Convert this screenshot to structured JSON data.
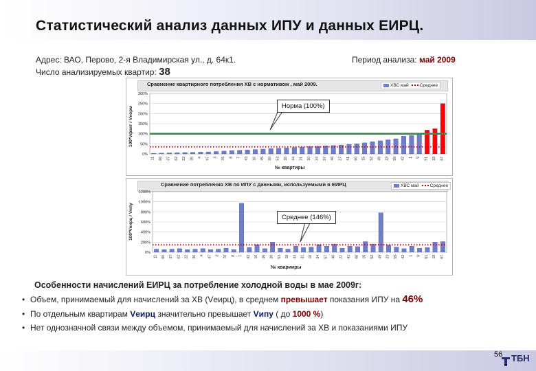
{
  "title": "Статистический анализ данных ИПУ и данных ЕИРЦ.",
  "info": {
    "address": "Адрес: ВАО, Перово, 2-я Владимирская ул., д. 64к1.",
    "count_label": "Число анализируемых квартир:",
    "count_value": "38",
    "period_label": "Период анализа:",
    "period_value": "май 2009"
  },
  "chart_data": [
    {
      "type": "bar",
      "title": "Сравнение квартирного потребления ХВ с нормативом , май 2009.",
      "ylabel": "100*Vфакт / Vнорм",
      "xlabel": "№ квартиры",
      "ylim": [
        0,
        300
      ],
      "ytick_labels": [
        "0%",
        "50%",
        "100%",
        "150%",
        "200%",
        "250%",
        "300%"
      ],
      "legend": [
        "ХВС май",
        "Среднее"
      ],
      "categories": [
        "11",
        "66",
        "37",
        "62",
        "22",
        "36",
        "4",
        "47",
        "3",
        "76",
        "8",
        "7",
        "43",
        "16",
        "45",
        "20",
        "53",
        "18",
        "44",
        "31",
        "10",
        "34",
        "57",
        "46",
        "27",
        "41",
        "60",
        "15",
        "52",
        "49",
        "23",
        "59",
        "42",
        "1",
        "9",
        "51",
        "19",
        "67"
      ],
      "values": [
        3,
        4,
        5,
        6,
        7,
        8,
        9,
        10,
        12,
        14,
        16,
        18,
        20,
        22,
        24,
        26,
        28,
        30,
        32,
        34,
        36,
        38,
        40,
        42,
        44,
        47,
        50,
        55,
        60,
        65,
        70,
        75,
        88,
        92,
        96,
        118,
        125,
        250
      ],
      "highlighted_from_index": 35,
      "norm_line": 100,
      "average_line": 35,
      "grid": true,
      "legend_position": "top-right"
    },
    {
      "type": "bar",
      "title": "Сравнение потребления ХВ по ИПУ с данными, используемыми в ЕИРЦ",
      "ylabel": "100*Vеирц / Vипу",
      "xlabel": "№ кварииры",
      "ylim": [
        0,
        1200
      ],
      "ytick_labels": [
        "0%",
        "200%",
        "400%",
        "600%",
        "800%",
        "1000%",
        "1200%"
      ],
      "legend": [
        "ХВС май",
        "Среднее"
      ],
      "categories": [
        "11",
        "66",
        "37",
        "62",
        "22",
        "36",
        "4",
        "47",
        "3",
        "76",
        "8",
        "7",
        "43",
        "16",
        "45",
        "20",
        "53",
        "18",
        "44",
        "31",
        "10",
        "34",
        "57",
        "46",
        "27",
        "41",
        "60",
        "15",
        "52",
        "49",
        "23",
        "59",
        "42",
        "1",
        "9",
        "51",
        "19",
        "67"
      ],
      "values": [
        60,
        50,
        60,
        70,
        50,
        60,
        70,
        50,
        60,
        80,
        50,
        970,
        90,
        150,
        70,
        200,
        80,
        60,
        120,
        90,
        100,
        150,
        120,
        160,
        80,
        120,
        110,
        210,
        160,
        780,
        140,
        100,
        70,
        120,
        80,
        90,
        200,
        210
      ],
      "average_line": 146,
      "grid": true,
      "legend_position": "top-right"
    }
  ],
  "callouts": {
    "norm": "Норма (100%)",
    "average": "Среднее (146%)"
  },
  "notes": {
    "heading": "Особенности начислений ЕИРЦ за потребление холодной воды в мае 2009г:",
    "b1_pre": "Объем, принимаемый для начислений за ХВ (Vеирц), в среднем",
    "b1_em": "превышает",
    "b1_post": "показания ИПУ на",
    "b1_pct": "46%",
    "b2_pre": "По отдельным квартирам",
    "b2_v1": "Vеирц",
    "b2_mid": "значительно превышает",
    "b2_v2": "Vипу",
    "b2_post_a": "( до",
    "b2_post_pct": "1000 %",
    "b2_post_b": ")",
    "b3": "Нет однозначной связи между объемом, принимаемый для начислений за ХВ и показаниями ИПУ"
  },
  "footer": {
    "page_number": "56",
    "logo_text": "ТБН"
  },
  "colors": {
    "bar": "#6d7dc9",
    "bar_highlight": "#ff0000",
    "norm_line": "#3a8a4a",
    "average_line": "#c00000",
    "accent": "#7a0000"
  }
}
